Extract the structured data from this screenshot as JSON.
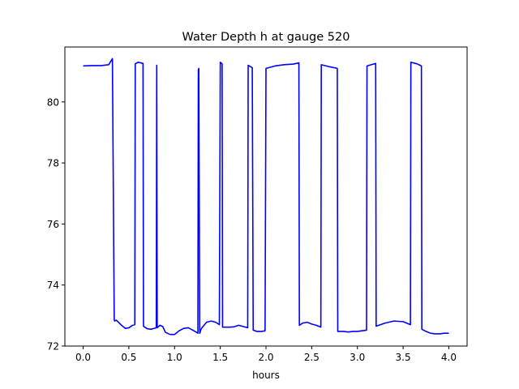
{
  "chart_data": {
    "type": "line",
    "title": "Water Depth h at gauge 520",
    "xlabel": "hours",
    "ylabel": "",
    "xlim": [
      -0.2,
      4.2
    ],
    "ylim": [
      72.0,
      81.8
    ],
    "xticks": [
      0.0,
      0.5,
      1.0,
      1.5,
      2.0,
      2.5,
      3.0,
      3.5,
      4.0
    ],
    "xtick_labels": [
      "0.0",
      "0.5",
      "1.0",
      "1.5",
      "2.0",
      "2.5",
      "3.0",
      "3.5",
      "4.0"
    ],
    "yticks": [
      72,
      74,
      76,
      78,
      80
    ],
    "ytick_labels": [
      "72",
      "74",
      "76",
      "78",
      "80"
    ],
    "grid": false,
    "legend": "none",
    "series": [
      {
        "color": "#0000ff",
        "x": [
          0.0,
          0.1,
          0.2,
          0.28,
          0.32,
          0.34,
          0.345,
          0.36,
          0.38,
          0.42,
          0.46,
          0.5,
          0.54,
          0.565,
          0.57,
          0.6,
          0.63,
          0.655,
          0.66,
          0.7,
          0.74,
          0.78,
          0.8,
          0.805,
          0.81,
          0.84,
          0.87,
          0.9,
          0.95,
          1.0,
          1.05,
          1.1,
          1.15,
          1.2,
          1.24,
          1.255,
          1.26,
          1.265,
          1.275,
          1.28,
          1.285,
          1.3,
          1.35,
          1.4,
          1.45,
          1.48,
          1.49,
          1.5,
          1.52,
          1.525,
          1.6,
          1.65,
          1.7,
          1.8,
          1.805,
          1.85,
          1.86,
          1.9,
          1.95,
          1.99,
          2.0,
          2.1,
          2.2,
          2.3,
          2.36,
          2.365,
          2.4,
          2.45,
          2.5,
          2.55,
          2.6,
          2.605,
          2.7,
          2.78,
          2.785,
          2.85,
          2.9,
          2.95,
          3.0,
          3.05,
          3.1,
          3.105,
          3.15,
          3.2,
          3.205,
          3.3,
          3.4,
          3.5,
          3.58,
          3.585,
          3.65,
          3.7,
          3.705,
          3.75,
          3.8,
          3.85,
          3.9,
          3.95,
          4.0
        ],
        "y": [
          81.18,
          81.19,
          81.19,
          81.22,
          81.42,
          72.85,
          72.82,
          72.85,
          72.8,
          72.68,
          72.58,
          72.6,
          72.68,
          72.7,
          81.25,
          81.3,
          81.28,
          81.26,
          72.65,
          72.57,
          72.55,
          72.58,
          72.6,
          81.2,
          72.6,
          72.68,
          72.64,
          72.45,
          72.38,
          72.38,
          72.5,
          72.58,
          72.6,
          72.52,
          72.45,
          72.42,
          81.05,
          81.1,
          72.42,
          72.45,
          72.52,
          72.6,
          72.78,
          72.82,
          72.78,
          72.72,
          72.7,
          81.3,
          81.25,
          72.62,
          72.62,
          72.63,
          72.68,
          72.6,
          81.2,
          81.12,
          72.52,
          72.48,
          72.48,
          72.5,
          81.1,
          81.18,
          81.22,
          81.24,
          81.28,
          72.68,
          72.75,
          72.78,
          72.72,
          72.68,
          72.62,
          81.22,
          81.15,
          81.1,
          72.48,
          72.48,
          72.46,
          72.48,
          72.48,
          72.5,
          72.52,
          81.18,
          81.22,
          81.26,
          72.65,
          72.75,
          72.82,
          72.8,
          72.7,
          81.3,
          81.25,
          81.18,
          72.55,
          72.48,
          72.42,
          72.4,
          72.4,
          72.42,
          72.42
        ]
      }
    ]
  }
}
